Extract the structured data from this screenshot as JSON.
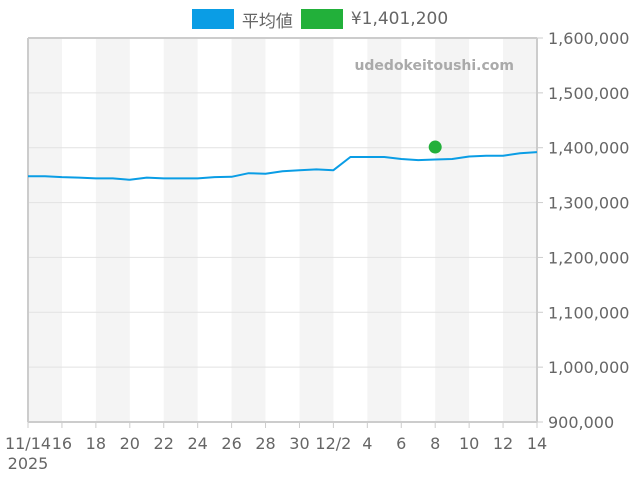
{
  "legend": {
    "items": [
      {
        "label": "平均値",
        "color": "#0a9de5"
      },
      {
        "label": "¥1,401,200",
        "color": "#22b03a"
      }
    ]
  },
  "watermark": "udedokeitoushi.com",
  "colors": {
    "line": "#0a9de5",
    "point": "#22b03a",
    "band": "#f4f4f4",
    "grid": "#e2e2e2",
    "axis": "#cccccc",
    "text": "#666666",
    "watermark": "#aaaaaa"
  },
  "chart_data": {
    "type": "line",
    "title": "",
    "xlabel": "",
    "ylabel": "",
    "x_tick_labels": [
      "11/14\n2025",
      "16",
      "18",
      "20",
      "22",
      "24",
      "26",
      "28",
      "30",
      "12/2",
      "4",
      "6",
      "8",
      "10",
      "12",
      "14"
    ],
    "y_tick_labels": [
      "1,600,000",
      "1,500,000",
      "1,400,000",
      "1,300,000",
      "1,200,000",
      "1,100,000",
      "1,000,000",
      "900,000"
    ],
    "ylim": [
      900000,
      1600000
    ],
    "y_axis_position": "right",
    "grid": true,
    "legend_position": "top",
    "x": [
      "11/14",
      "11/15",
      "11/16",
      "11/17",
      "11/18",
      "11/19",
      "11/20",
      "11/21",
      "11/22",
      "11/23",
      "11/24",
      "11/25",
      "11/26",
      "11/27",
      "11/28",
      "11/29",
      "11/30",
      "12/1",
      "12/2",
      "12/3",
      "12/4",
      "12/5",
      "12/6",
      "12/7",
      "12/8",
      "12/9",
      "12/10",
      "12/11",
      "12/12",
      "12/13",
      "12/14"
    ],
    "series": [
      {
        "name": "平均値",
        "type": "line",
        "values": [
          1348000,
          1348000,
          1346500,
          1345500,
          1344000,
          1344000,
          1341500,
          1345500,
          1344000,
          1344000,
          1344000,
          1346500,
          1347000,
          1353500,
          1352500,
          1357000,
          1359000,
          1360500,
          1359000,
          1383000,
          1383000,
          1383000,
          1379500,
          1377500,
          1378500,
          1379500,
          1384000,
          1385500,
          1385500,
          1390000,
          1392000
        ]
      },
      {
        "name": "¥1,401,200",
        "type": "point",
        "points": [
          {
            "x": "12/8",
            "y": 1401200
          }
        ]
      }
    ]
  }
}
